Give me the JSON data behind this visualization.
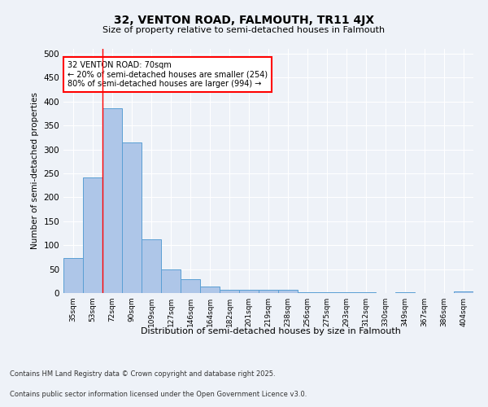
{
  "title_line1": "32, VENTON ROAD, FALMOUTH, TR11 4JX",
  "title_line2": "Size of property relative to semi-detached houses in Falmouth",
  "xlabel": "Distribution of semi-detached houses by size in Falmouth",
  "ylabel": "Number of semi-detached properties",
  "categories": [
    "35sqm",
    "53sqm",
    "72sqm",
    "90sqm",
    "109sqm",
    "127sqm",
    "146sqm",
    "164sqm",
    "182sqm",
    "201sqm",
    "219sqm",
    "238sqm",
    "256sqm",
    "275sqm",
    "293sqm",
    "312sqm",
    "330sqm",
    "349sqm",
    "367sqm",
    "386sqm",
    "404sqm"
  ],
  "values": [
    73,
    242,
    386,
    315,
    113,
    50,
    29,
    13,
    7,
    7,
    7,
    6,
    2,
    2,
    2,
    1,
    0,
    1,
    0,
    0,
    3
  ],
  "bar_color": "#aec6e8",
  "bar_edge_color": "#5a9fd4",
  "vline_color": "red",
  "annotation_title": "32 VENTON ROAD: 70sqm",
  "annotation_line1": "← 20% of semi-detached houses are smaller (254)",
  "annotation_line2": "80% of semi-detached houses are larger (994) →",
  "annotation_box_color": "white",
  "annotation_box_edge_color": "red",
  "ylim": [
    0,
    510
  ],
  "yticks": [
    0,
    50,
    100,
    150,
    200,
    250,
    300,
    350,
    400,
    450,
    500
  ],
  "footer_line1": "Contains HM Land Registry data © Crown copyright and database right 2025.",
  "footer_line2": "Contains public sector information licensed under the Open Government Licence v3.0.",
  "bg_color": "#eef2f8",
  "grid_color": "#ffffff"
}
